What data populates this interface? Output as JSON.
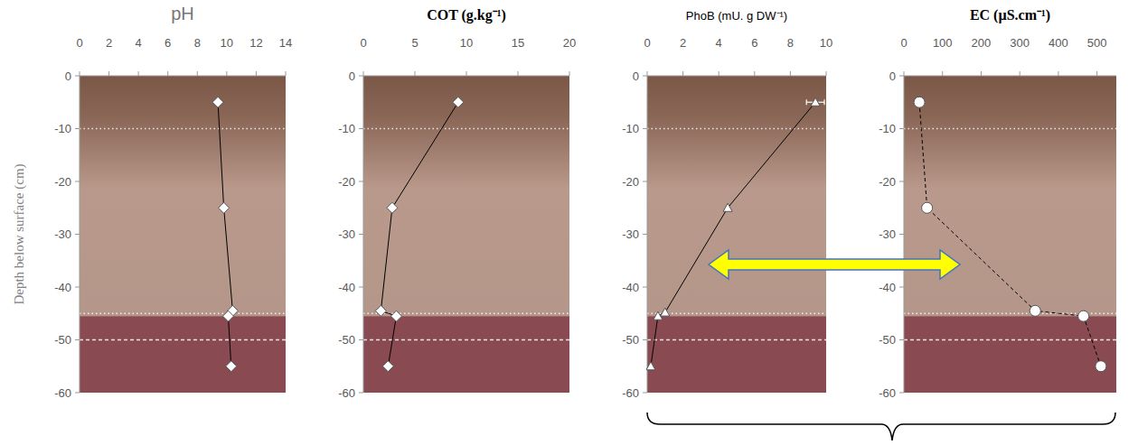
{
  "chart_data": [
    {
      "type": "line",
      "title": "pH",
      "ylabel": "Depth below surface (cm)",
      "xlim": [
        0,
        14
      ],
      "xticks": [
        0,
        2,
        4,
        6,
        8,
        10,
        12,
        14
      ],
      "ylim": [
        0,
        -60
      ],
      "yticks": [
        0,
        -10,
        -20,
        -30,
        -40,
        -50,
        -60
      ],
      "horizon_lines": [
        -10,
        -45,
        -50
      ],
      "layer_boundary": -45.5,
      "series": [
        {
          "x": [
            9.4,
            9.8,
            10.4,
            10.1,
            10.3
          ],
          "y": [
            -5,
            -25,
            -44.5,
            -45.5,
            -55
          ],
          "marker": "diamond",
          "line_style": "solid",
          "color": "#000000"
        }
      ]
    },
    {
      "type": "line",
      "title": "COT (g.kg⁻¹)",
      "xlim": [
        0,
        20
      ],
      "xticks": [
        0,
        5,
        10,
        15,
        20
      ],
      "ylim": [
        0,
        -60
      ],
      "yticks": [
        0,
        -10,
        -20,
        -30,
        -40,
        -50,
        -60
      ],
      "horizon_lines": [
        -10,
        -45,
        -50
      ],
      "layer_boundary": -45.5,
      "series": [
        {
          "x": [
            9.2,
            2.8,
            1.7,
            3.2,
            2.4
          ],
          "y": [
            -5,
            -25,
            -44.5,
            -45.5,
            -55
          ],
          "marker": "diamond",
          "line_style": "solid",
          "color": "#000000"
        }
      ]
    },
    {
      "type": "line",
      "title": "PhoB (mU. g DW⁻¹)",
      "xlim": [
        0,
        10
      ],
      "xticks": [
        0,
        2,
        4,
        6,
        8,
        10
      ],
      "ylim": [
        0,
        -60
      ],
      "yticks": [
        0,
        -10,
        -20,
        -30,
        -40,
        -50,
        -60
      ],
      "horizon_lines": [
        -10,
        -45,
        -50
      ],
      "layer_boundary": -45.5,
      "series": [
        {
          "x": [
            9.4,
            4.5,
            1.0,
            0.6,
            0.2
          ],
          "y": [
            -5,
            -25,
            -44.8,
            -45.5,
            -55
          ],
          "x_error": [
            0.5,
            null,
            null,
            null,
            null
          ],
          "marker": "triangle",
          "line_style": "solid",
          "color": "#000000"
        }
      ]
    },
    {
      "type": "line",
      "title": "EC (µS.cm⁻¹)",
      "xlim": [
        0,
        550
      ],
      "xticks": [
        0,
        100,
        200,
        300,
        400,
        500
      ],
      "ylim": [
        0,
        -60
      ],
      "yticks": [
        0,
        -10,
        -20,
        -30,
        -40,
        -50,
        -60
      ],
      "horizon_lines": [
        -10,
        -45,
        -50
      ],
      "layer_boundary": -45.5,
      "series": [
        {
          "x": [
            40,
            60,
            340,
            465,
            510
          ],
          "y": [
            -5,
            -25,
            -44.5,
            -45.5,
            -55
          ],
          "marker": "circle",
          "line_style": "dashed",
          "color": "#000000"
        }
      ]
    }
  ]
}
